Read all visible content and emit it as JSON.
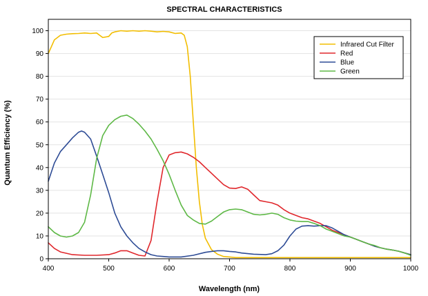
{
  "chart_data": {
    "type": "line",
    "title": "SPECTRAL CHARACTERISTICS",
    "xlabel": "Wavelength (nm)",
    "ylabel": "Quantum Efficiency (%)",
    "xlim": [
      400,
      1000
    ],
    "ylim": [
      0,
      105
    ],
    "xticks": [
      400,
      500,
      600,
      700,
      800,
      900,
      1000
    ],
    "yticks": [
      0,
      10,
      20,
      30,
      40,
      50,
      60,
      70,
      80,
      90,
      100
    ],
    "grid": true,
    "legend_position": "top-right",
    "series": [
      {
        "name": "Infrared Cut Filter",
        "color": "#f2bd00",
        "x": [
          400,
          405,
          410,
          420,
          430,
          440,
          450,
          460,
          470,
          480,
          485,
          490,
          500,
          505,
          510,
          520,
          530,
          540,
          550,
          560,
          570,
          580,
          590,
          600,
          610,
          620,
          625,
          630,
          635,
          640,
          645,
          650,
          655,
          660,
          670,
          680,
          690,
          700,
          710,
          750,
          800,
          850,
          900,
          950,
          1000
        ],
        "y": [
          90,
          93,
          96,
          98,
          98.5,
          98.7,
          98.8,
          99,
          98.8,
          99,
          98,
          97,
          97.5,
          99,
          99.5,
          100,
          99.8,
          100,
          99.8,
          100,
          99.8,
          99.5,
          99.7,
          99.5,
          98.8,
          99,
          98,
          93,
          80,
          60,
          40,
          25,
          15,
          9,
          4,
          2,
          1,
          0.8,
          0.5,
          0.5,
          0.5,
          0.5,
          0.5,
          0.5,
          0.5
        ]
      },
      {
        "name": "Red",
        "color": "#e0262b",
        "x": [
          400,
          410,
          420,
          440,
          460,
          480,
          500,
          510,
          520,
          530,
          540,
          550,
          560,
          570,
          580,
          590,
          600,
          610,
          620,
          630,
          640,
          650,
          660,
          670,
          680,
          690,
          700,
          710,
          720,
          730,
          740,
          750,
          760,
          770,
          780,
          790,
          800,
          810,
          820,
          830,
          840,
          850,
          860,
          870,
          880,
          890,
          900,
          910,
          920,
          930,
          940,
          950,
          960,
          970,
          980,
          990,
          1000
        ],
        "y": [
          7,
          4.5,
          3,
          1.8,
          1.5,
          1.5,
          1.8,
          2.5,
          3.5,
          3.5,
          2.5,
          1.5,
          1.2,
          8,
          25,
          40,
          45.5,
          46.5,
          46.8,
          46,
          44.5,
          42.5,
          40,
          37.5,
          35,
          32.5,
          31,
          30.8,
          31.5,
          30.5,
          28,
          25.5,
          25,
          24.5,
          23.5,
          21.5,
          20,
          19,
          18,
          17.5,
          16.5,
          15.5,
          14,
          12.5,
          11.5,
          10.5,
          9.5,
          8.5,
          7.5,
          6.5,
          5.5,
          4.8,
          4.2,
          3.8,
          3.3,
          2.5,
          1.8
        ]
      },
      {
        "name": "Blue",
        "color": "#2d4b95",
        "x": [
          400,
          410,
          420,
          430,
          440,
          450,
          455,
          460,
          470,
          480,
          490,
          500,
          510,
          520,
          530,
          540,
          550,
          560,
          570,
          580,
          590,
          600,
          620,
          640,
          660,
          670,
          680,
          690,
          700,
          710,
          720,
          740,
          760,
          770,
          780,
          790,
          800,
          810,
          820,
          830,
          840,
          850,
          860,
          870,
          880,
          890,
          900,
          910,
          920,
          930,
          940,
          950,
          960,
          970,
          980,
          990,
          1000
        ],
        "y": [
          34,
          42,
          47,
          50,
          53,
          55.5,
          56,
          55.5,
          52.5,
          45,
          37,
          29,
          20,
          14,
          10,
          7,
          4.5,
          3,
          1.8,
          1.2,
          1,
          0.8,
          0.8,
          1.5,
          2.8,
          3.2,
          3.5,
          3.5,
          3.2,
          3,
          2.5,
          2,
          1.8,
          2.2,
          3.5,
          6,
          10,
          13,
          14.3,
          14.5,
          14.3,
          14.5,
          14.5,
          13.5,
          12,
          10.5,
          9.5,
          8.5,
          7.5,
          6.5,
          5.5,
          4.8,
          4.2,
          3.8,
          3.3,
          2.5,
          1.8
        ]
      },
      {
        "name": "Green",
        "color": "#5db845",
        "x": [
          400,
          410,
          420,
          430,
          440,
          450,
          460,
          470,
          480,
          490,
          500,
          510,
          520,
          530,
          540,
          550,
          560,
          570,
          580,
          590,
          600,
          610,
          620,
          630,
          640,
          650,
          660,
          670,
          680,
          690,
          700,
          710,
          720,
          730,
          740,
          750,
          760,
          770,
          780,
          790,
          800,
          810,
          820,
          830,
          840,
          850,
          860,
          870,
          880,
          890,
          900,
          910,
          920,
          930,
          940,
          950,
          960,
          970,
          980,
          990,
          1000
        ],
        "y": [
          14,
          11.5,
          10,
          9.5,
          10,
          11.5,
          16,
          28,
          44,
          54,
          58.5,
          61,
          62.5,
          63,
          61.5,
          59,
          56,
          52.5,
          48,
          43,
          37,
          30,
          23.5,
          19,
          17,
          15.5,
          15.2,
          16.5,
          18.5,
          20.5,
          21.5,
          21.8,
          21.5,
          20.5,
          19.5,
          19.2,
          19.5,
          20,
          19.5,
          18,
          17,
          16.5,
          16.3,
          16.3,
          15.5,
          14.5,
          13,
          12,
          11,
          10,
          9.5,
          8.5,
          7.5,
          6.5,
          5.8,
          4.8,
          4.2,
          3.8,
          3.3,
          2.5,
          1.5
        ]
      }
    ]
  }
}
